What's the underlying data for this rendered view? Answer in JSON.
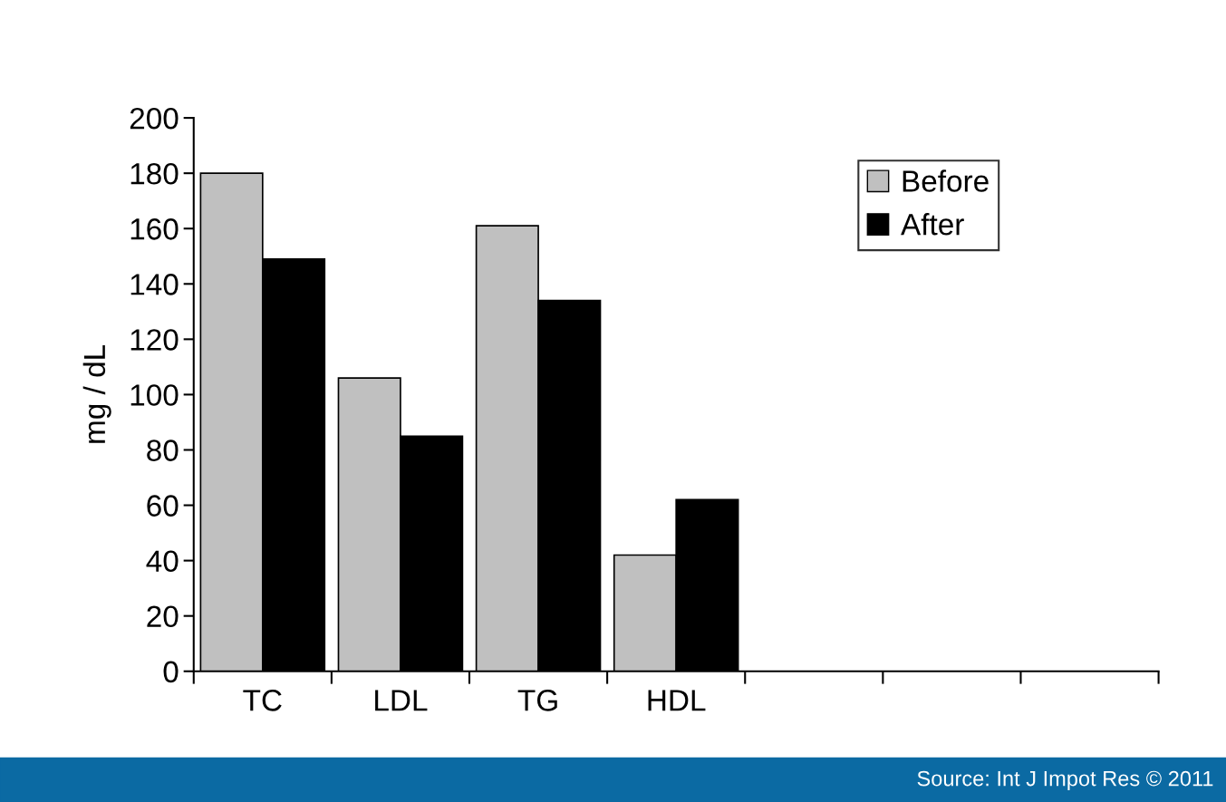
{
  "chart_data": {
    "type": "bar",
    "ylabel": "mg / dL",
    "categories": [
      "TC",
      "LDL",
      "TG",
      "HDL",
      null,
      null,
      null
    ],
    "series": [
      {
        "name": "Before",
        "color": "#c0c0c0",
        "values": [
          180,
          106,
          161,
          42,
          null,
          null,
          null
        ]
      },
      {
        "name": "After",
        "color": "#000000",
        "values": [
          149,
          85,
          134,
          62,
          null,
          null,
          null
        ]
      }
    ],
    "ylim": [
      0,
      200
    ],
    "yticks": [
      0,
      20,
      40,
      60,
      80,
      100,
      120,
      140,
      160,
      180,
      200
    ],
    "grid": false,
    "legend": "top right",
    "annotations": [
      "Source: Int J Impot Res © 2011"
    ]
  }
}
